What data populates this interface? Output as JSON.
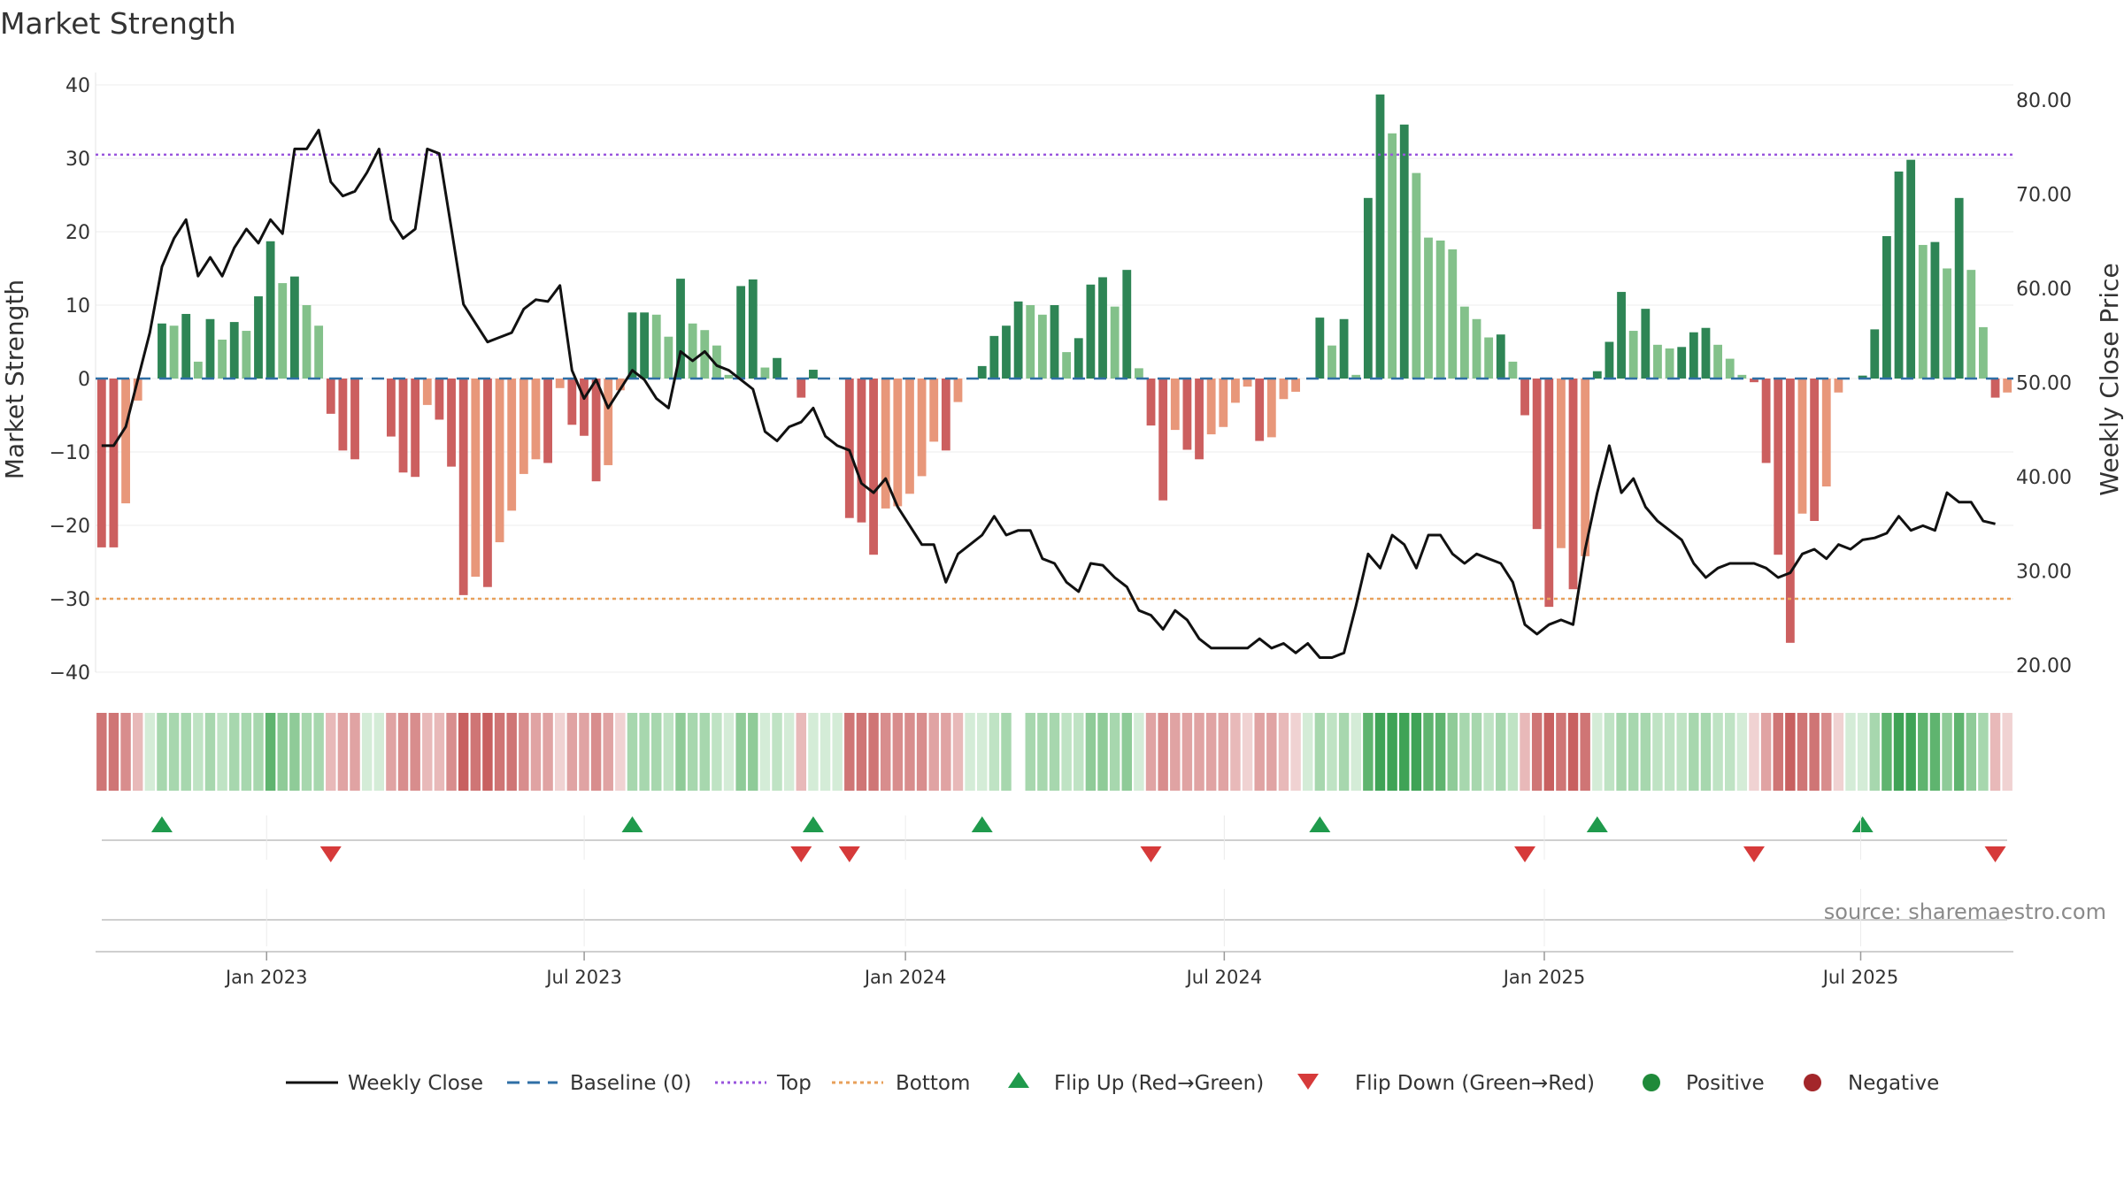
{
  "chart_data": {
    "type": "bar",
    "title": "Market Strength",
    "ylabel_left": "Market Strength",
    "ylabel_right": "Weekly Close Price",
    "ylim_left": [
      -40,
      40
    ],
    "ylim_right": [
      20,
      80
    ],
    "left_ticks": [
      "40",
      "30",
      "20",
      "10",
      "0",
      "−10",
      "−20",
      "−30",
      "−40"
    ],
    "left_tick_values": [
      40,
      30,
      20,
      10,
      0,
      -10,
      -20,
      -30,
      -40
    ],
    "right_ticks": [
      "80.00",
      "70.00",
      "60.00",
      "50.00",
      "40.00",
      "30.00",
      "20.00"
    ],
    "right_tick_values": [
      80,
      70,
      60,
      50,
      40,
      30,
      20
    ],
    "top_level": 30.5,
    "bottom_level": -30,
    "x_range": [
      -14,
      143
    ],
    "date_ticks": [
      {
        "label": "Jan 2023",
        "week": 0
      },
      {
        "label": "Jul 2023",
        "week": 26
      },
      {
        "label": "Jan 2024",
        "week": 52.3
      },
      {
        "label": "Jul 2024",
        "week": 78.4
      },
      {
        "label": "Jan 2025",
        "week": 104.6
      },
      {
        "label": "Jul 2025",
        "week": 130.5
      }
    ],
    "strength": [
      -23,
      -23,
      -17,
      -3,
      0,
      7.5,
      7.2,
      8.8,
      2.3,
      8.1,
      5.3,
      7.7,
      6.5,
      11.2,
      18.7,
      13,
      13.9,
      10,
      7.2,
      -4.8,
      -9.8,
      -11,
      0,
      0,
      -7.9,
      -12.8,
      -13.4,
      -3.6,
      -5.6,
      -12,
      -29.5,
      -27,
      -28.4,
      -22.3,
      -18,
      -13,
      -11,
      -11.5,
      -1.3,
      -6.3,
      -7.8,
      -14,
      -11.8,
      -1.6,
      9,
      9,
      8.7,
      5.7,
      13.6,
      7.5,
      6.6,
      4.5,
      0.5,
      12.6,
      13.5,
      1.5,
      2.8,
      0,
      -2.6,
      1.2,
      0,
      0,
      -19,
      -19.6,
      -24,
      -17.7,
      -17.4,
      -15.7,
      -13.3,
      -8.6,
      -9.8,
      -3.2,
      0,
      1.7,
      5.8,
      7.2,
      10.5,
      10,
      8.7,
      10,
      3.6,
      5.5,
      12.8,
      13.8,
      9.8,
      14.8,
      1.4,
      -6.4,
      -16.6,
      -7,
      -9.7,
      -11,
      -7.6,
      -6.6,
      -3.3,
      -1.1,
      -8.5,
      -8,
      -2.8,
      -1.8,
      0,
      8.3,
      4.5,
      8.1,
      0.5,
      24.6,
      38.7,
      33.4,
      34.6,
      28,
      19.2,
      18.8,
      17.6,
      9.8,
      8.1,
      5.6,
      6,
      2.3,
      -5,
      -20.5,
      -31.1,
      -23.1,
      -28.7,
      -24.2,
      1,
      5,
      11.8,
      6.5,
      9.5,
      4.6,
      4.1,
      4.3,
      6.3,
      6.9,
      4.6,
      2.7,
      0.5,
      -0.5,
      -11.5,
      -24,
      -36,
      -18.4,
      -19.4,
      -14.7,
      -1.9,
      0,
      0.4,
      6.7,
      19.4,
      28.2,
      29.8,
      18.2,
      18.6,
      15,
      24.6,
      14.8,
      7,
      -2.6,
      -1.9
    ],
    "weekly_close": [
      43.3,
      43.3,
      45.3,
      50.3,
      55.3,
      62.3,
      65.3,
      67.3,
      61.3,
      63.3,
      61.3,
      64.3,
      66.3,
      64.8,
      67.3,
      65.8,
      74.8,
      74.8,
      76.8,
      71.3,
      69.8,
      70.3,
      72.3,
      74.8,
      67.3,
      65.3,
      66.3,
      74.8,
      74.3,
      66.3,
      58.3,
      56.3,
      54.3,
      54.8,
      55.3,
      57.8,
      58.8,
      58.6,
      60.3,
      51.3,
      48.3,
      50.3,
      47.3,
      49.3,
      51.3,
      50.3,
      48.3,
      47.3,
      53.3,
      52.3,
      53.3,
      51.8,
      51.3,
      50.3,
      49.3,
      44.8,
      43.8,
      45.3,
      45.8,
      47.3,
      44.3,
      43.3,
      42.8,
      39.3,
      38.3,
      39.8,
      36.8,
      34.8,
      32.8,
      32.8,
      28.8,
      31.8,
      32.8,
      33.8,
      35.8,
      33.8,
      34.3,
      34.3,
      31.3,
      30.8,
      28.8,
      27.8,
      30.8,
      30.6,
      29.3,
      28.3,
      25.8,
      25.3,
      23.8,
      25.8,
      24.8,
      22.8,
      21.8,
      21.8,
      21.8,
      21.8,
      22.8,
      21.8,
      22.3,
      21.3,
      22.3,
      20.8,
      20.8,
      21.3,
      26.3,
      31.8,
      30.3,
      33.8,
      32.8,
      30.3,
      33.8,
      33.8,
      31.8,
      30.8,
      31.8,
      31.3,
      30.8,
      28.8,
      24.3,
      23.3,
      24.3,
      24.8,
      24.3,
      32.3,
      38.3,
      43.3,
      38.3,
      39.8,
      36.8,
      35.3,
      34.3,
      33.3,
      30.8,
      29.3,
      30.3,
      30.8,
      30.8,
      30.8,
      30.3,
      29.3,
      29.8,
      31.8,
      32.3,
      31.3,
      32.8,
      32.3,
      33.3,
      33.5,
      34,
      35.8,
      34.3,
      34.8,
      34.3,
      38.3,
      37.3,
      37.3,
      35.3,
      35
    ]
  },
  "legend": {
    "weekly_close": "Weekly Close",
    "baseline": "Baseline (0)",
    "top": "Top",
    "bottom": "Bottom",
    "flip_up": "Flip Up (Red→Green)",
    "flip_down": "Flip Down (Green→Red)",
    "positive": "Positive",
    "negative": "Negative"
  },
  "source": "source: sharemaestro.com",
  "colors": {
    "pos_strong": "#2e8555",
    "pos_light": "#83c18a",
    "neg_strong": "#cc5f5f",
    "neg_light": "#e8977a",
    "line": "#111111",
    "baseline": "#2f6fa6",
    "top": "#9955dd",
    "bottom": "#e8a05a",
    "flip_up": "#1f9a4c",
    "flip_down": "#d63a3a",
    "positive_dot": "#1f8a3a",
    "negative_dot": "#a3262a"
  }
}
